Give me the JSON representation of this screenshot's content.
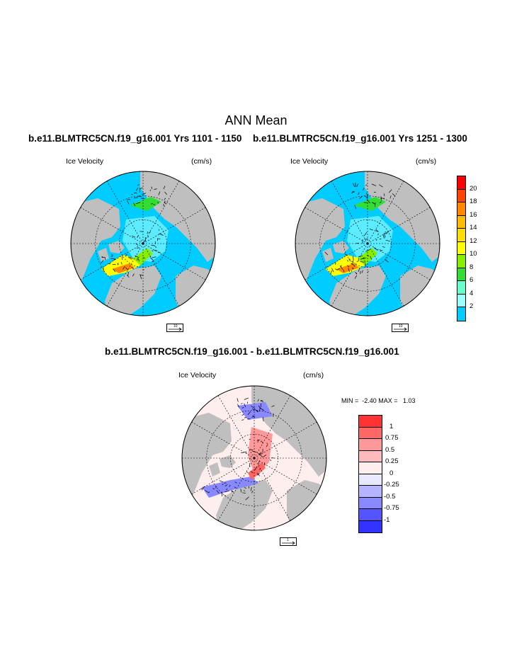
{
  "figure": {
    "title": "ANN Mean",
    "left_case": "b.e11.BLMTRC5CN.f19_g16.001  Yrs 1101 - 1150",
    "right_case": "b.e11.BLMTRC5CN.f19_g16.001  Yrs 1251 - 1300",
    "diff_title": "b.e11.BLMTRC5CN.f19_g16.001 - b.e11.BLMTRC5CN.f19_g16.001"
  },
  "panels": {
    "left": {
      "variable": "Ice Velocity",
      "units": "(cm/s)",
      "ref_vector": "10"
    },
    "right": {
      "variable": "Ice Velocity",
      "units": "(cm/s)",
      "ref_vector": "10"
    },
    "diff": {
      "variable": "Ice Velocity",
      "units": "(cm/s)",
      "ref_vector": "1",
      "minmax": "MIN =  -2.40 MAX =   1.03"
    }
  },
  "colorbars": {
    "speed": {
      "labels": [
        "20",
        "18",
        "16",
        "14",
        "12",
        "10",
        "8",
        "6",
        "4",
        "2"
      ],
      "colors": [
        "#ff0000",
        "#ff4400",
        "#ff8800",
        "#ffbb00",
        "#ffdd00",
        "#ffff00",
        "#88ee00",
        "#33dd33",
        "#66ffcc",
        "#99ffff",
        "#00ccff"
      ]
    },
    "difference": {
      "labels": [
        "1",
        "0.75",
        "0.5",
        "0.25",
        "0",
        "-0.25",
        "-0.5",
        "-0.75",
        "-1"
      ],
      "colors": [
        "#ff3333",
        "#ff6666",
        "#ff9999",
        "#ffbbbb",
        "#ffeeee",
        "#e8e8ff",
        "#b4b4ff",
        "#8888ff",
        "#5555ff",
        "#3333ff"
      ]
    }
  },
  "map_colors": {
    "land": "#bfbfbf",
    "ocean_speed": "#00ccff",
    "ocean_diff": "#ffeeee"
  }
}
